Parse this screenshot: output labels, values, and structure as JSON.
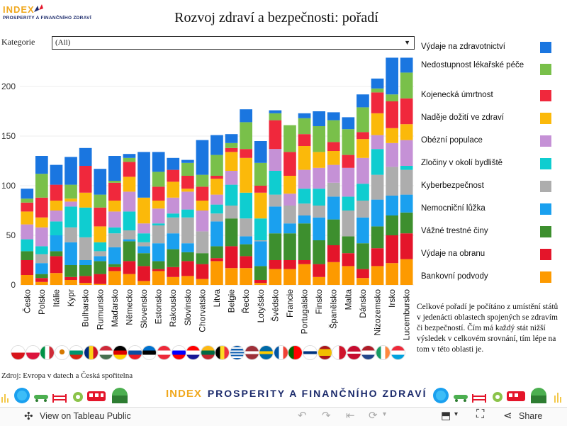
{
  "header": {
    "logo_brand": "INDEX",
    "logo_sub": "PROSPERITY A FINANČNÍHO ZDRAVÍ",
    "title": "Rozvoj zdraví a bezpečnosti: pořadí"
  },
  "filter": {
    "label": "Kategorie",
    "value": "(All)"
  },
  "legend": [
    {
      "label": "Výdaje na zdravotnictví",
      "color": "#1a76e0"
    },
    {
      "label": "Nedostupnost lékařské péče",
      "color": "#79c04a"
    },
    {
      "label": "Kojenecká úmrtnost",
      "color": "#f0283c"
    },
    {
      "label": "Naděje dožití ve zdraví",
      "color": "#fbb90a"
    },
    {
      "label": "Obézní populace",
      "color": "#c591d6"
    },
    {
      "label": "Zločiny v okolí bydliště",
      "color": "#0fcdd0"
    },
    {
      "label": "Kyberbezpečnost",
      "color": "#adadad"
    },
    {
      "label": "Nemocniční lůžka",
      "color": "#1aa0ef"
    },
    {
      "label": "Vážné trestné činy",
      "color": "#3d8f2e"
    },
    {
      "label": "Výdaje na obranu",
      "color": "#e4152a"
    },
    {
      "label": "Bankovní podvody",
      "color": "#fd9a00"
    }
  ],
  "chart_data": {
    "type": "bar",
    "stacked": true,
    "title": "Rozvoj zdraví a bezpečnosti: pořadí",
    "xlabel": "",
    "ylabel": "",
    "ylim": [
      0,
      225
    ],
    "yticks": [
      0,
      50,
      100,
      150,
      200
    ],
    "categories": [
      "Česko",
      "Polsko",
      "Itálie",
      "Kypr",
      "Bulharsko",
      "Rumunsko",
      "Maďarsko",
      "Německo",
      "Slovensko",
      "Estonsko",
      "Rakousko",
      "Slovinsko",
      "Chorvatsko",
      "Litva",
      "Belgie",
      "Řecko",
      "Lotyšsko",
      "Švédsko",
      "Francie",
      "Portugalsko",
      "Finsko",
      "Španělsko",
      "Malta",
      "Dánsko",
      "Nizozemsko",
      "Irsko",
      "Lucembursko"
    ],
    "series": [
      {
        "name": "Bankovní podvody",
        "values": [
          10,
          3,
          12,
          5,
          2,
          1,
          14,
          11,
          4,
          14,
          8,
          9,
          6,
          24,
          17,
          17,
          2,
          16,
          16,
          21,
          8,
          23,
          19,
          7,
          19,
          22,
          26
        ]
      },
      {
        "name": "Výdaje na obranu",
        "values": [
          15,
          4,
          17,
          3,
          7,
          10,
          4,
          13,
          15,
          2,
          10,
          15,
          15,
          3,
          22,
          12,
          3,
          9,
          9,
          4,
          13,
          17,
          13,
          9,
          18,
          28,
          26
        ]
      },
      {
        "name": "Vážné trestné činy",
        "values": [
          9,
          4,
          5,
          12,
          11,
          13,
          3,
          20,
          13,
          8,
          18,
          9,
          11,
          12,
          28,
          12,
          14,
          27,
          27,
          37,
          24,
          26,
          17,
          26,
          22,
          20,
          21
        ]
      },
      {
        "name": "Nemocniční lůžka",
        "values": [
          0,
          11,
          16,
          23,
          5,
          5,
          17,
          2,
          7,
          18,
          16,
          9,
          0,
          25,
          0,
          8,
          25,
          27,
          10,
          8,
          23,
          23,
          0,
          26,
          27,
          20,
          18
        ]
      },
      {
        "name": "Kyberbezpečnost",
        "values": [
          0,
          9,
          0,
          15,
          23,
          5,
          14,
          9,
          4,
          18,
          16,
          26,
          22,
          8,
          13,
          18,
          1,
          12,
          18,
          12,
          12,
          14,
          26,
          17,
          25,
          29,
          25
        ]
      },
      {
        "name": "Zločiny v okolí bydliště",
        "values": [
          12,
          8,
          14,
          21,
          30,
          9,
          6,
          19,
          9,
          2,
          4,
          8,
          0,
          9,
          21,
          26,
          22,
          24,
          0,
          15,
          17,
          0,
          14,
          17,
          26,
          0,
          4
        ]
      },
      {
        "name": "Obézní populace",
        "values": [
          15,
          19,
          11,
          5,
          0,
          0,
          16,
          20,
          10,
          15,
          16,
          18,
          21,
          10,
          14,
          0,
          0,
          22,
          12,
          19,
          21,
          18,
          29,
          26,
          14,
          24,
          26
        ]
      },
      {
        "name": "Naděje dožití ve zdraví",
        "values": [
          13,
          10,
          10,
          3,
          15,
          16,
          11,
          15,
          26,
          8,
          16,
          3,
          10,
          16,
          19,
          35,
          26,
          0,
          18,
          24,
          16,
          14,
          0,
          19,
          22,
          15,
          16
        ]
      },
      {
        "name": "Kojenecká úmrtnost",
        "values": [
          9,
          20,
          16,
          0,
          27,
          19,
          18,
          15,
          0,
          14,
          12,
          13,
          14,
          3,
          4,
          9,
          7,
          29,
          24,
          12,
          0,
          9,
          13,
          7,
          21,
          27,
          26
        ]
      },
      {
        "name": "Nedostupnost lékařské péče",
        "values": [
          4,
          24,
          0,
          14,
          0,
          13,
          2,
          4,
          0,
          15,
          0,
          13,
          12,
          21,
          5,
          27,
          23,
          7,
          27,
          16,
          26,
          22,
          26,
          25,
          4,
          7,
          26
        ]
      },
      {
        "name": "Výdaje na zdravotnictví",
        "values": [
          10,
          18,
          20,
          28,
          18,
          26,
          25,
          4,
          46,
          20,
          12,
          3,
          35,
          20,
          9,
          13,
          22,
          3,
          0,
          5,
          15,
          8,
          12,
          13,
          10,
          37,
          15
        ]
      }
    ],
    "total_order": "ascending",
    "footnote": "Celkové pořadí je počítáno z umístění států v jedenácti oblastech spojených se zdravím či bezpečností. Čím má každý stát nižší výsledek v celkovém srovnání, tím lépe na tom v této oblasti je."
  },
  "flags": [
    "CZ",
    "PL",
    "IT",
    "CY",
    "BG",
    "RO",
    "HU",
    "DE",
    "SK",
    "EE",
    "AT",
    "SI",
    "HR",
    "LT",
    "BE",
    "GR",
    "LV",
    "SE",
    "FR",
    "PT",
    "FI",
    "ES",
    "MT",
    "DK",
    "NL",
    "IE",
    "LU"
  ],
  "footer": {
    "source": "Zdroj: Evropa v datech a Česká spořitelna",
    "banner_index": "INDEX",
    "banner_rest": "PROSPERITY A FINANČNÍHO ZDRAVÍ"
  },
  "toolbar": {
    "view_label": "View on Tableau Public",
    "share_label": "Share"
  }
}
